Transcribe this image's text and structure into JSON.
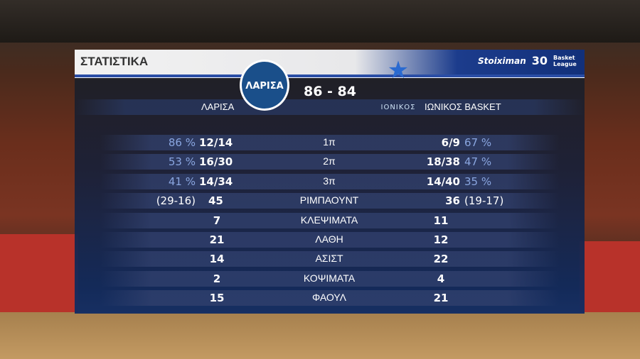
{
  "header": {
    "title": "ΣΤΑΤΙΣΤΙΚΑ",
    "sponsor": "Stoiximan",
    "league": "Basket League",
    "league_number": "30"
  },
  "match": {
    "home": "ΛΑΡΙΣΑ",
    "away": "ΙΩΝΙΚΟΣ BASKET",
    "score": "86 - 84",
    "home_logo_text": "ΛΑΡΙΣΑ",
    "away_logo_text": "ΙΟΝΙΚΟΣ"
  },
  "colors": {
    "panel": "#1c2c5a",
    "header_band": "#2a4ea6",
    "percent": "#8aa6e0"
  },
  "stats": [
    {
      "label": "1π",
      "home": "12/14",
      "home_extra": "86 %",
      "away": "6/9",
      "away_extra": "67 %"
    },
    {
      "label": "2π",
      "home": "16/30",
      "home_extra": "53 %",
      "away": "18/38",
      "away_extra": "47 %"
    },
    {
      "label": "3π",
      "home": "14/34",
      "home_extra": "41 %",
      "away": "14/40",
      "away_extra": "35 %"
    },
    {
      "label": "ΡΙΜΠΑΟΥΝΤ",
      "home": "45",
      "home_extra": "(29-16)",
      "away": "36",
      "away_extra": "(19-17)"
    },
    {
      "label": "ΚΛΕΨΙΜΑΤΑ",
      "home": "7",
      "away": "11"
    },
    {
      "label": "ΛΑΘΗ",
      "home": "21",
      "away": "12"
    },
    {
      "label": "ΑΣΙΣΤ",
      "home": "14",
      "away": "22"
    },
    {
      "label": "ΚΟΨΙΜΑΤΑ",
      "home": "2",
      "away": "4"
    },
    {
      "label": "ΦΑΟΥΛ",
      "home": "15",
      "away": "21"
    }
  ]
}
